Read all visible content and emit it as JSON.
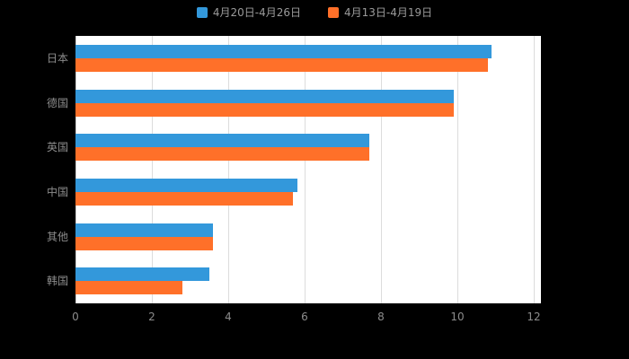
{
  "legend": {
    "items": [
      {
        "label": "4月20日-4月26日",
        "color": "#3398DB"
      },
      {
        "label": "4月13日-4月19日",
        "color": "#FF7029"
      }
    ]
  },
  "chart_data": {
    "type": "bar",
    "orientation": "horizontal",
    "title": "",
    "xlabel": "",
    "ylabel": "",
    "categories": [
      "日本",
      "德国",
      "英国",
      "中国",
      "其他",
      "韩国"
    ],
    "series": [
      {
        "name": "4月20日-4月26日",
        "color": "#3398DB",
        "values": [
          10.9,
          9.9,
          7.7,
          5.8,
          3.6,
          3.5
        ]
      },
      {
        "name": "4月13日-4月19日",
        "color": "#FF7029",
        "values": [
          10.8,
          9.9,
          7.7,
          5.7,
          3.6,
          2.8
        ]
      }
    ],
    "xlim": [
      0,
      12
    ],
    "x_ticks": [
      0,
      2,
      4,
      6,
      8,
      10,
      12
    ],
    "grid": true,
    "legend_position": "top",
    "background": "#000000",
    "plot_background": "#ffffff",
    "text_color": "#8c8c8c"
  }
}
